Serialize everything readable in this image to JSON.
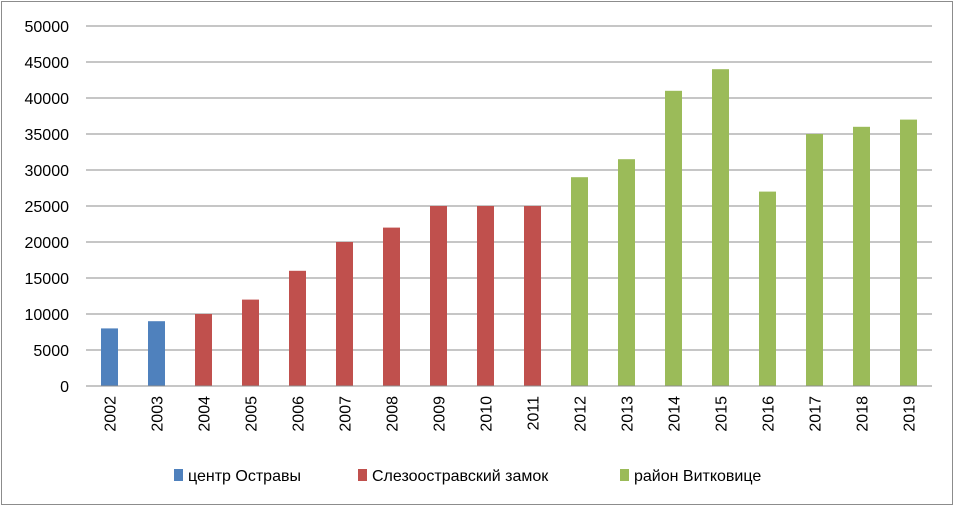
{
  "chart_data": {
    "type": "bar",
    "categories": [
      "2002",
      "2003",
      "2004",
      "2005",
      "2006",
      "2007",
      "2008",
      "2009",
      "2010",
      "2011",
      "2012",
      "2013",
      "2014",
      "2015",
      "2016",
      "2017",
      "2018",
      "2019"
    ],
    "series": [
      {
        "name": "центр Остравы",
        "color": "#4f81bd",
        "values": [
          8000,
          9000,
          null,
          null,
          null,
          null,
          null,
          null,
          null,
          null,
          null,
          null,
          null,
          null,
          null,
          null,
          null,
          null
        ]
      },
      {
        "name": "Слезоостравский замок",
        "color": "#c0504d",
        "values": [
          null,
          null,
          10000,
          12000,
          16000,
          20000,
          22000,
          25000,
          25000,
          25000,
          null,
          null,
          null,
          null,
          null,
          null,
          null,
          null
        ]
      },
      {
        "name": "район Витковице",
        "color": "#9bbb59",
        "values": [
          null,
          null,
          null,
          null,
          null,
          null,
          null,
          null,
          null,
          null,
          29000,
          31500,
          41000,
          44000,
          27000,
          35000,
          36000,
          37000
        ]
      }
    ],
    "y_ticks": [
      "0",
      "5000",
      "10000",
      "15000",
      "20000",
      "25000",
      "30000",
      "35000",
      "40000",
      "45000",
      "50000"
    ],
    "ylim": [
      0,
      50000
    ],
    "grid": true,
    "legend_position": "bottom",
    "title": "",
    "xlabel": "",
    "ylabel": ""
  }
}
